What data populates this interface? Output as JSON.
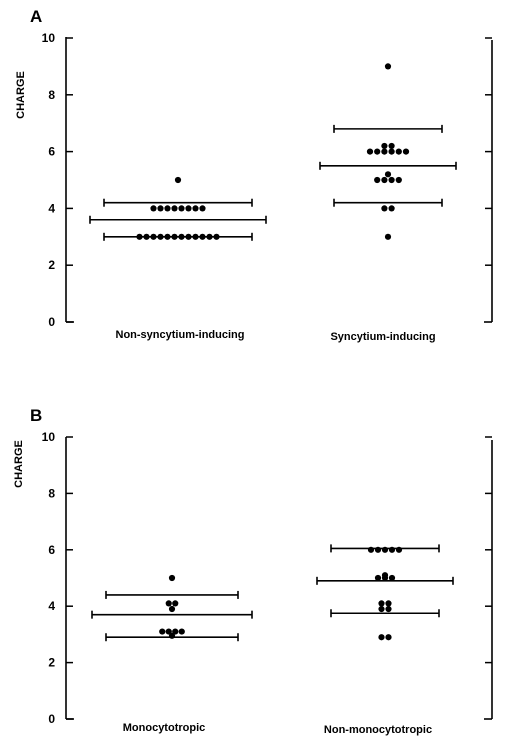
{
  "chart_data": [
    {
      "panel": "A",
      "type": "scatter",
      "ylabel": "CHARGE",
      "ylim": [
        0,
        10
      ],
      "yticks": [
        0,
        2,
        4,
        6,
        8,
        10
      ],
      "categories": [
        "Non-syncytium-inducing",
        "Syncytium-inducing"
      ],
      "groups": [
        {
          "category": "Non-syncytium-inducing",
          "points": [
            {
              "y": 5,
              "n": 1
            },
            {
              "y": 4,
              "n": 8
            },
            {
              "y": 3,
              "n": 12
            }
          ],
          "mean": 3.6,
          "upper": 4.2,
          "lower": 3.0
        },
        {
          "category": "Syncytium-inducing",
          "points": [
            {
              "y": 9,
              "n": 1
            },
            {
              "y": 6.2,
              "n": 2
            },
            {
              "y": 6,
              "n": 6
            },
            {
              "y": 5.2,
              "n": 1
            },
            {
              "y": 5,
              "n": 4
            },
            {
              "y": 4,
              "n": 2
            },
            {
              "y": 3,
              "n": 1
            }
          ],
          "mean": 5.5,
          "upper": 6.8,
          "lower": 4.2
        }
      ]
    },
    {
      "panel": "B",
      "type": "scatter",
      "ylabel": "CHARGE",
      "ylim": [
        0,
        10
      ],
      "yticks": [
        0,
        2,
        4,
        6,
        8,
        10
      ],
      "categories": [
        "Monocytotropic",
        "Non-monocytotropic"
      ],
      "groups": [
        {
          "category": "Monocytotropic",
          "points": [
            {
              "y": 5,
              "n": 1
            },
            {
              "y": 4.1,
              "n": 2
            },
            {
              "y": 3.9,
              "n": 1
            },
            {
              "y": 3.1,
              "n": 4
            },
            {
              "y": 2.95,
              "n": 1
            }
          ],
          "mean": 3.7,
          "upper": 4.4,
          "lower": 2.9
        },
        {
          "category": "Non-monocytotropic",
          "points": [
            {
              "y": 6,
              "n": 5
            },
            {
              "y": 5.1,
              "n": 1
            },
            {
              "y": 5,
              "n": 3
            },
            {
              "y": 4.1,
              "n": 2
            },
            {
              "y": 3.9,
              "n": 2
            },
            {
              "y": 2.9,
              "n": 2
            }
          ],
          "mean": 4.9,
          "upper": 6.05,
          "lower": 3.75
        }
      ]
    }
  ]
}
